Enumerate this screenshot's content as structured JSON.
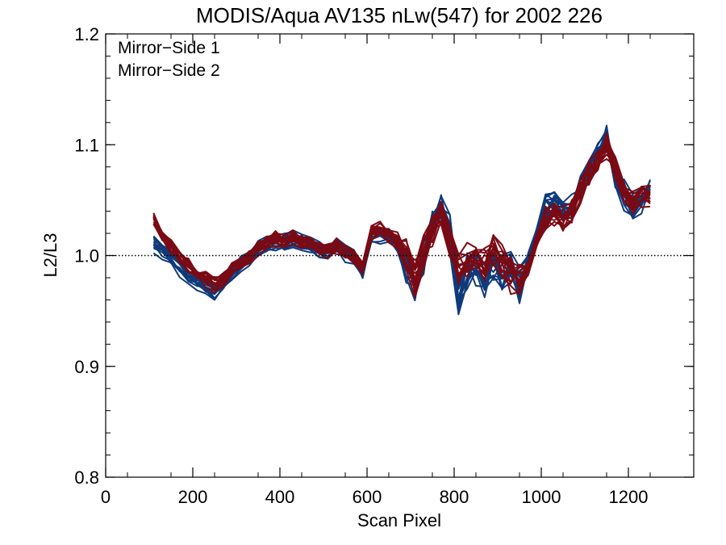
{
  "chart_data": {
    "type": "line",
    "title": "MODIS/Aqua AV135 nLw(547) for 2002 226",
    "xlabel": "Scan Pixel",
    "ylabel": "L2/L3",
    "xlim": [
      0,
      1350
    ],
    "ylim": [
      0.8,
      1.2
    ],
    "x_ticks": [
      0,
      200,
      400,
      600,
      800,
      1000,
      1200
    ],
    "x_tick_labels": [
      "0",
      "200",
      "400",
      "600",
      "800",
      "1000",
      "1200"
    ],
    "y_ticks": [
      0.8,
      0.9,
      1.0,
      1.1,
      1.2
    ],
    "y_tick_labels": [
      "0.8",
      "0.9",
      "1.0",
      "1.1",
      "1.2"
    ],
    "reference_line": 1.0,
    "legend_position": "top-left",
    "grid": false,
    "x": [
      110,
      130,
      150,
      170,
      190,
      210,
      230,
      250,
      270,
      290,
      310,
      330,
      350,
      370,
      390,
      410,
      430,
      450,
      470,
      490,
      510,
      530,
      550,
      570,
      590,
      610,
      630,
      650,
      670,
      690,
      710,
      730,
      750,
      770,
      790,
      810,
      830,
      850,
      870,
      890,
      910,
      930,
      950,
      970,
      990,
      1010,
      1030,
      1050,
      1070,
      1090,
      1110,
      1130,
      1150,
      1170,
      1190,
      1210,
      1230,
      1250
    ],
    "series": [
      {
        "name": "Mirror−Side 1",
        "color": "#0f3a7a",
        "line_count": 14,
        "values": [
          1.01,
          1.005,
          0.998,
          0.99,
          0.982,
          0.976,
          0.972,
          0.968,
          0.975,
          0.985,
          0.993,
          0.998,
          1.005,
          1.01,
          1.014,
          1.013,
          1.015,
          1.012,
          1.01,
          1.006,
          1.004,
          1.008,
          1.002,
          0.998,
          0.985,
          1.018,
          1.02,
          1.017,
          1.01,
          0.99,
          0.975,
          1.0,
          1.03,
          1.045,
          1.02,
          0.965,
          0.985,
          0.99,
          0.98,
          0.995,
          0.985,
          0.99,
          0.975,
          0.995,
          1.02,
          1.045,
          1.05,
          1.04,
          1.045,
          1.065,
          1.08,
          1.09,
          1.11,
          1.07,
          1.055,
          1.045,
          1.05,
          1.06
        ]
      },
      {
        "name": "Mirror−Side 2",
        "color": "#7a0a14",
        "line_count": 14,
        "values": [
          1.035,
          1.02,
          1.01,
          1.0,
          0.992,
          0.985,
          0.98,
          0.975,
          0.98,
          0.99,
          0.995,
          1.0,
          1.008,
          1.012,
          1.016,
          1.015,
          1.017,
          1.014,
          1.012,
          1.008,
          1.006,
          1.01,
          1.005,
          1.0,
          0.99,
          1.022,
          1.025,
          1.02,
          1.015,
          1.005,
          0.98,
          1.005,
          1.025,
          1.035,
          1.015,
          0.99,
          1.0,
          1.005,
          0.995,
          1.005,
          0.995,
          0.985,
          0.98,
          0.99,
          1.015,
          1.035,
          1.04,
          1.035,
          1.04,
          1.06,
          1.075,
          1.085,
          1.1,
          1.08,
          1.06,
          1.05,
          1.055,
          1.055
        ]
      }
    ]
  }
}
